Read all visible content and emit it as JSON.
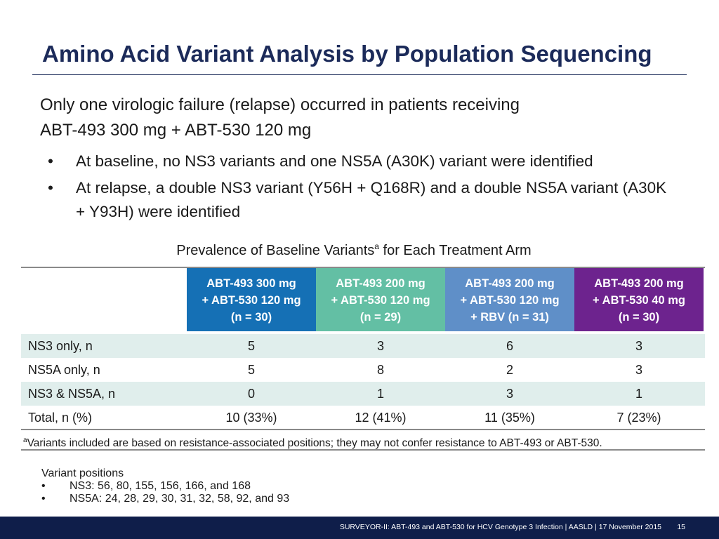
{
  "slide": {
    "title": "Amino Acid Variant Analysis by Population Sequencing",
    "lead_line1": "Only one virologic failure (relapse) occurred in patients receiving",
    "lead_line2": "ABT-493 300 mg + ABT-530 120 mg",
    "bullets": [
      "At baseline, no NS3 variants and one NS5A (A30K) variant were identified",
      "At relapse, a double NS3 variant (Y56H + Q168R) and a double NS5A variant (A30K + Y93H) were identified"
    ],
    "bullet_glyph": "•"
  },
  "table": {
    "caption": "Prevalence of Baseline Variants",
    "caption_sup": "a",
    "caption_tail": " for Each Treatment Arm",
    "columns": [
      {
        "line1": "ABT-493 300 mg",
        "line2": "+ ABT-530 120 mg",
        "line3": "(n = 30)",
        "color": "#1570b5"
      },
      {
        "line1": "ABT-493 200 mg",
        "line2": "+ ABT-530 120 mg",
        "line3": "(n = 29)",
        "color": "#63bfa4"
      },
      {
        "line1": "ABT-493 200 mg",
        "line2": "+ ABT-530 120 mg",
        "line3": "+ RBV (n = 31)",
        "color": "#5f8fc8"
      },
      {
        "line1": "ABT-493 200 mg",
        "line2": "+ ABT-530 40 mg",
        "line3": "(n = 30)",
        "color": "#6d238e"
      }
    ],
    "rows": [
      {
        "label": "NS3 only, n",
        "values": [
          "5",
          "3",
          "6",
          "3"
        ]
      },
      {
        "label": "NS5A only, n",
        "values": [
          "5",
          "8",
          "2",
          "3"
        ]
      },
      {
        "label": "NS3 & NS5A, n",
        "values": [
          "0",
          "1",
          "3",
          "1"
        ]
      },
      {
        "label": "Total, n (%)",
        "values": [
          "10 (33%)",
          "12 (41%)",
          "11 (35%)",
          "7 (23%)"
        ]
      }
    ],
    "footnote_sup": "a",
    "footnote": "Variants included are based on resistance-associated positions; they may not confer resistance to ABT-493 or ABT-530."
  },
  "positions": {
    "heading": "Variant positions",
    "items": [
      "NS3: 56, 80, 155, 156, 166, and 168",
      "NS5A: 24, 28, 29, 30, 31, 32, 58, 92, and 93"
    ]
  },
  "footer": {
    "text": "SURVEYOR-II: ABT-493 and ABT-530 for HCV Genotype 3 Infection   | AASLD | 17 November 2015",
    "page": "15"
  }
}
